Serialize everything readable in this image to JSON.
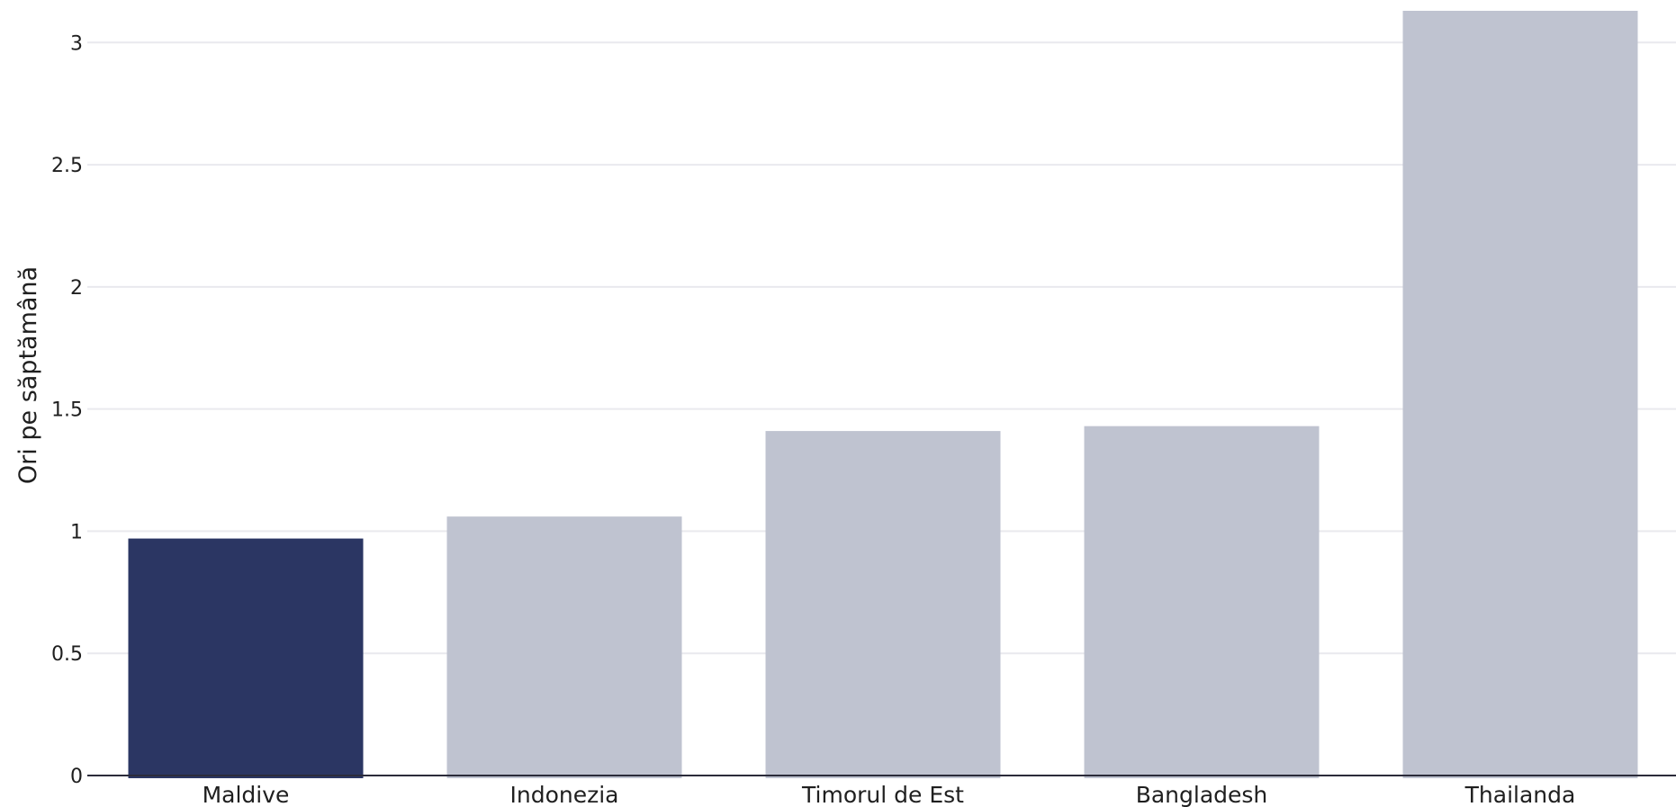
{
  "chart_data": {
    "type": "bar",
    "title": "",
    "xlabel": "",
    "ylabel": "Ori pe săptămână",
    "categories": [
      "Maldive",
      "Indonezia",
      "Timorul de Est",
      "Bangladesh",
      "Thailanda"
    ],
    "values": [
      0.97,
      1.06,
      1.41,
      1.43,
      3.13
    ],
    "highlight_index": 0,
    "ylim": [
      0,
      3.13
    ],
    "yticks": [
      0,
      0.5,
      1,
      1.5,
      2,
      2.5,
      3
    ],
    "ytick_labels": [
      "0",
      "0.5",
      "1",
      "1.5",
      "2",
      "2.5",
      "3"
    ],
    "grid": true,
    "colors": {
      "highlight": "#2b3663",
      "muted": "#bfc3d0",
      "grid": "#e9e9ee",
      "axis": "#2b2b3a",
      "text": "#1f1f1f"
    }
  }
}
